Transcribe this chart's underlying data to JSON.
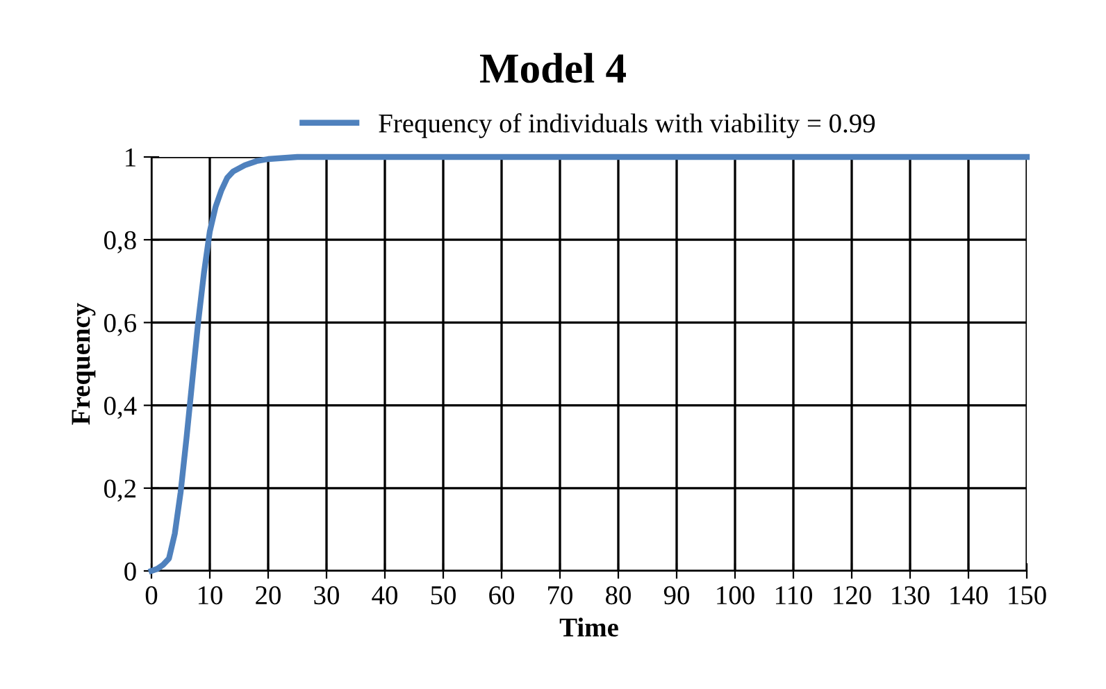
{
  "chart_data": {
    "type": "line",
    "title": "Model 4",
    "xlabel": "Time",
    "ylabel": "Frequency",
    "series": [
      {
        "name": "Frequency of individuals with viability = 0.99",
        "color": "#4f81bd",
        "x": [
          0,
          1,
          2,
          3,
          4,
          5,
          6,
          7,
          8,
          9,
          10,
          11,
          12,
          13,
          14,
          16,
          18,
          20,
          25,
          30,
          40,
          50,
          60,
          70,
          80,
          90,
          100,
          110,
          120,
          130,
          140,
          150
        ],
        "values": [
          0,
          0.005,
          0.015,
          0.03,
          0.09,
          0.19,
          0.32,
          0.46,
          0.6,
          0.72,
          0.82,
          0.88,
          0.92,
          0.95,
          0.965,
          0.98,
          0.99,
          0.995,
          1,
          1,
          1,
          1,
          1,
          1,
          1,
          1,
          1,
          1,
          1,
          1,
          1,
          1
        ]
      }
    ],
    "xlim": [
      0,
      150
    ],
    "xticks": [
      0,
      10,
      20,
      30,
      40,
      50,
      60,
      70,
      80,
      90,
      100,
      110,
      120,
      130,
      140,
      150
    ],
    "ylim": [
      0,
      1
    ],
    "yticks": [
      0,
      {
        "value": 0.2,
        "label": "0,2"
      },
      {
        "value": 0.4,
        "label": "0,4"
      },
      {
        "value": 0.6,
        "label": "0,6"
      },
      {
        "value": 0.8,
        "label": "0,8"
      },
      1
    ],
    "grid": true,
    "legend": "top",
    "marker": "none",
    "line_style": "solid"
  }
}
